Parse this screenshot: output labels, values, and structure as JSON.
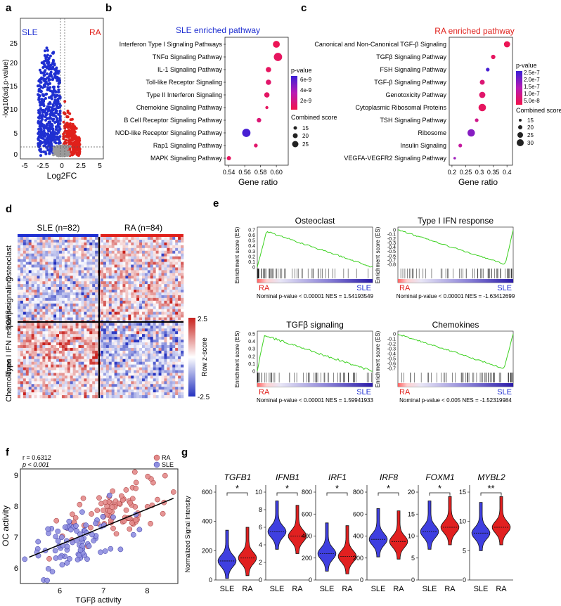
{
  "panel_letters": {
    "a": "a",
    "b": "b",
    "c": "c",
    "d": "d",
    "e": "e",
    "f": "f",
    "g": "g"
  },
  "colors": {
    "sle": "#1f2fd1",
    "ra": "#e0201b",
    "gsea_line": "#3bd11f",
    "grey": "#9a9a9a"
  },
  "volcano": {
    "ylabel": "-log10(adj.p-value)",
    "xlabel": "Log2FC",
    "sle_label": "SLE",
    "ra_label": "RA",
    "xticks": [
      "-5",
      "-2.5",
      "0",
      "2.5",
      "5"
    ],
    "yticks": [
      "0",
      "5",
      "10",
      "15",
      "20",
      "25"
    ]
  },
  "chart_data": [
    {
      "type": "scatter",
      "title": "SLE enriched pathway",
      "xlabel": "Gene ratio",
      "xlim": [
        0.535,
        0.615
      ],
      "xticks": [
        "0.54",
        "0.56",
        "0.58",
        "0.60"
      ],
      "categories": [
        "Interferon Type I Signaling Pathways",
        "TNFα Signaling Pathway",
        "IL-1 Signaling Pathway",
        "Toll-like Receptor Signaling",
        "Type II Interferon Signaling",
        "Chemokine Signaling Pathway",
        "B Cell Receptor Signaling Pathway",
        "NOD-like Receptor Signaling Pathway",
        "Rap1 Signaling Pathway",
        "MAPK Signaling Pathway"
      ],
      "gene_ratio": [
        0.6,
        0.602,
        0.59,
        0.59,
        0.588,
        0.588,
        0.578,
        0.562,
        0.574,
        0.54
      ],
      "combined_score": [
        18,
        22,
        14,
        14,
        14,
        8,
        12,
        22,
        10,
        11
      ],
      "pvalue_level": [
        0.95,
        0.9,
        0.9,
        0.85,
        0.88,
        0.9,
        0.8,
        0.05,
        0.85,
        0.9
      ],
      "legend_pvalue_title": "p-value",
      "legend_pvalue_ticks": [
        "6e-9",
        "4e-9",
        "2e-9"
      ],
      "legend_size_title": "Combined score",
      "legend_size_ticks": [
        "15",
        "20",
        "25"
      ]
    },
    {
      "type": "scatter",
      "title": "RA enriched pathway",
      "xlabel": "Gene ratio",
      "xlim": [
        0.19,
        0.42
      ],
      "xticks": [
        "0.2",
        "0.25",
        "0.3",
        "0.35",
        "0.4"
      ],
      "categories": [
        "Canonical and Non-Canonical TGF-β Signaling",
        "TGFβ Signaling Pathway",
        "FSH Signaling Pathway",
        "TGF-β Signaling Pathway",
        "Genotoxicity Pathway",
        "Cytoplasmic Ribosomal Proteins",
        "TSH Signaling Pathway",
        "Ribosome",
        "Insulin Signaling",
        "VEGFA-VEGFR2 Signaling Pathway"
      ],
      "gene_ratio": [
        0.4,
        0.35,
        0.33,
        0.31,
        0.31,
        0.31,
        0.29,
        0.27,
        0.23,
        0.21
      ],
      "combined_score": [
        20,
        14,
        12,
        16,
        20,
        24,
        12,
        24,
        12,
        8
      ],
      "pvalue_level": [
        0.95,
        0.9,
        0.05,
        0.8,
        0.85,
        0.9,
        0.7,
        0.3,
        0.6,
        0.4
      ],
      "legend_pvalue_title": "p-value",
      "legend_pvalue_ticks": [
        "2.5e-7",
        "2.0e-7",
        "1.5e-7",
        "1.0e-7",
        "5.0e-8"
      ],
      "legend_size_title": "Combined score",
      "legend_size_ticks": [
        "15",
        "20",
        "25",
        "30"
      ]
    },
    {
      "type": "scatter",
      "title": "",
      "xlabel": "TGFβ activity",
      "ylabel": "OC activity",
      "xlim": [
        5.1,
        8.7
      ],
      "ylim": [
        5.5,
        9.2
      ],
      "xticks": [
        "6",
        "7",
        "8"
      ],
      "yticks": [
        "6",
        "7",
        "8",
        "9"
      ],
      "r_text": "r = 0.6312",
      "p_text": "p < 0.001",
      "legend": [
        "RA",
        "SLE"
      ],
      "regression": {
        "x": [
          5.3,
          8.6
        ],
        "y": [
          6.35,
          8.25
        ]
      },
      "series": [
        {
          "name": "RA",
          "n": 84,
          "x_mean": 7.3,
          "y_mean": 7.85
        },
        {
          "name": "SLE",
          "n": 82,
          "x_mean": 6.4,
          "y_mean": 6.9
        }
      ]
    },
    {
      "type": "violin",
      "ylabel": "Normalized Signal Intensity",
      "categories": [
        "SLE",
        "RA"
      ],
      "genes": [
        {
          "name": "TGFB1",
          "sig": "*",
          "ylim": [
            0,
            600
          ],
          "yticks": [
            "0",
            "200",
            "400",
            "600"
          ],
          "sle_median": 130,
          "ra_median": 150
        },
        {
          "name": "IFNB1",
          "sig": "*",
          "ylim": [
            0,
            10
          ],
          "yticks": [
            "0",
            "2",
            "4",
            "6",
            "8",
            "10"
          ],
          "sle_median": 5.5,
          "ra_median": 5.0
        },
        {
          "name": "IRF1",
          "sig": "*",
          "ylim": [
            0,
            800
          ],
          "yticks": [
            "0",
            "200",
            "400",
            "600",
            "800"
          ],
          "sle_median": 240,
          "ra_median": 215
        },
        {
          "name": "IRF8",
          "sig": "*",
          "ylim": [
            0,
            800
          ],
          "yticks": [
            "0",
            "200",
            "400",
            "600",
            "800"
          ],
          "sle_median": 370,
          "ra_median": 350
        },
        {
          "name": "FOXM1",
          "sig": "*",
          "ylim": [
            0,
            20
          ],
          "yticks": [
            "0",
            "5",
            "10",
            "15",
            "20"
          ],
          "sle_median": 11,
          "ra_median": 12
        },
        {
          "name": "MYBL2",
          "sig": "**",
          "ylim": [
            0,
            15
          ],
          "yticks": [
            "0",
            "5",
            "10",
            "15"
          ],
          "sle_median": 8,
          "ra_median": 9
        }
      ]
    }
  ],
  "heatmap": {
    "sle_header": "SLE (n=82)",
    "ra_header": "RA (n=84)",
    "row_groups": [
      "Osteoclast",
      "TGFβ signaling",
      "Type I IFN response",
      "Chemokines"
    ],
    "colorbar_title": "Row z-score",
    "colorbar_max": "2.5",
    "colorbar_min": "-2.5"
  },
  "gsea": [
    {
      "title": "Osteoclast",
      "ylabel": "Enrichment score (ES)",
      "yticks": [
        "0",
        "0.1",
        "0.2",
        "0.3",
        "0.4",
        "0.5",
        "0.6",
        "0.7"
      ],
      "left": "RA",
      "right": "SLE",
      "stat": "Nominal  p-value < 0.00001 NES = 1.54193549"
    },
    {
      "title": "Type I IFN response",
      "ylabel": "Enrichment score (ES)",
      "yticks": [
        "0",
        "-0.1",
        "-0.2",
        "-0.3",
        "-0.4",
        "-0.5",
        "-0.6",
        "-0.7",
        "-0.8"
      ],
      "left": "RA",
      "right": "SLE",
      "stat": "Nominal  p-value < 0.00001 NES = -1.63412699"
    },
    {
      "title": "TGFβ signaling",
      "ylabel": "Enrichment score (ES)",
      "yticks": [
        "0",
        "0.1",
        "0.2",
        "0.3",
        "0.4",
        "0.5"
      ],
      "left": "RA",
      "right": "SLE",
      "stat": "Nominal  p-value < 0.00001 NES = 1.59941933"
    },
    {
      "title": "Chemokines",
      "ylabel": "Enrichment score (ES)",
      "yticks": [
        "0",
        "-0.1",
        "-0.2",
        "-0.3",
        "-0.4",
        "-0.5",
        "-0.6",
        "-0.7"
      ],
      "left": "RA",
      "right": "SLE",
      "stat": "Nominal  p-value < 0.005 NES = -1.52319984"
    }
  ]
}
